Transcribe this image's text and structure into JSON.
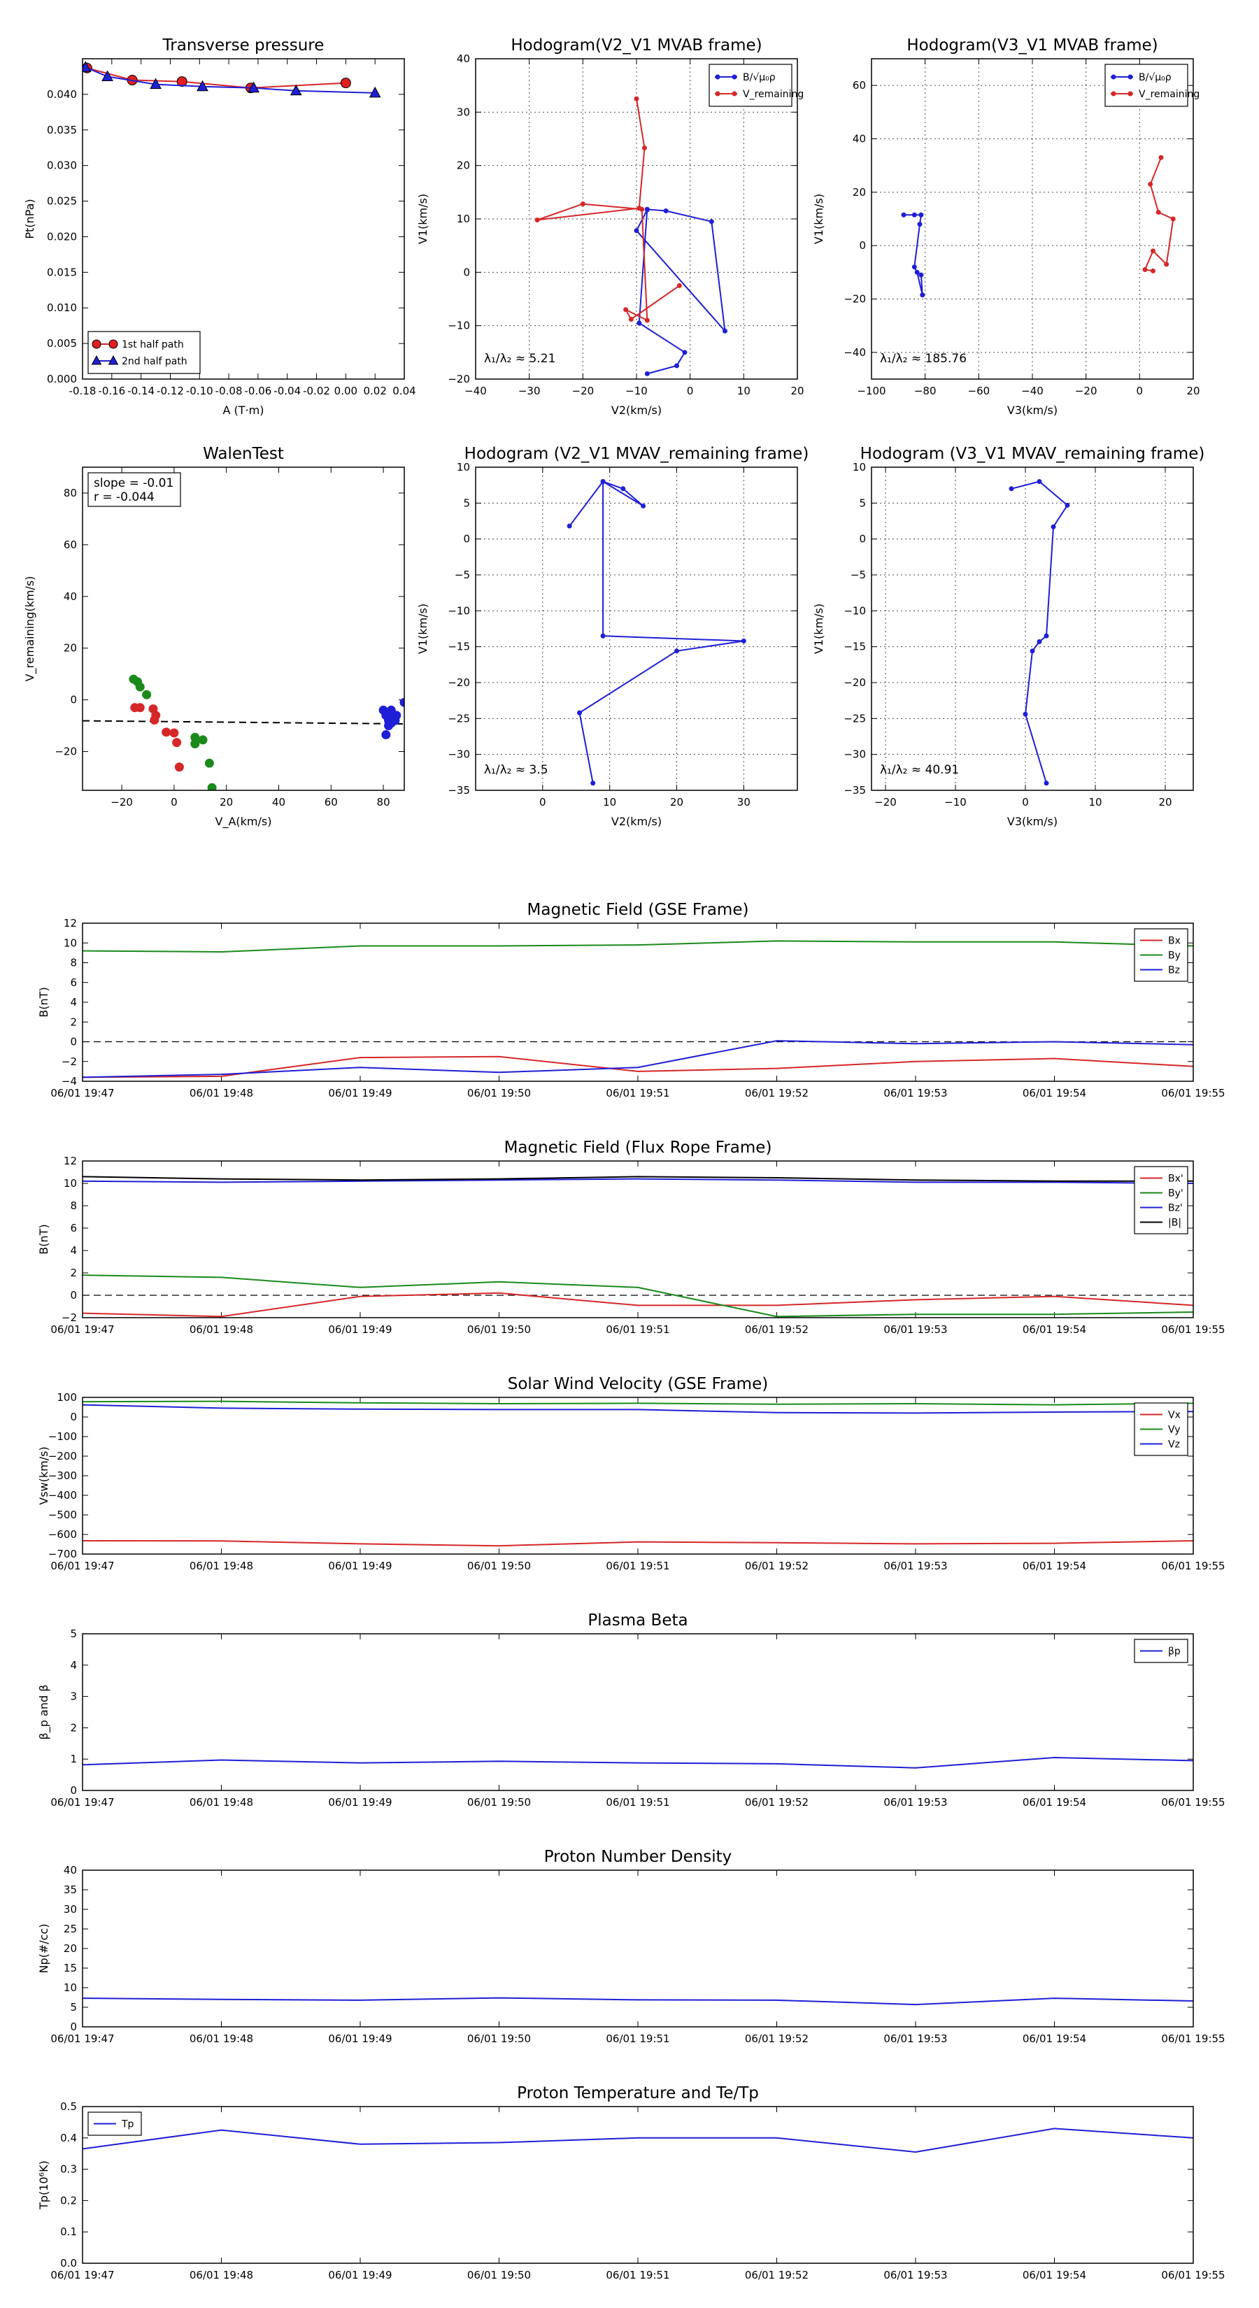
{
  "colors": {
    "red": "#d62728",
    "green": "#1a8a1a",
    "blue": "#1f1fd6",
    "black": "#000000"
  },
  "time_ticks": [
    "06/01 19:47",
    "06/01 19:48",
    "06/01 19:49",
    "06/01 19:50",
    "06/01 19:51",
    "06/01 19:52",
    "06/01 19:53",
    "06/01 19:54",
    "06/01 19:55"
  ],
  "chart_data": [
    {
      "id": "transverse_pressure",
      "type": "line",
      "title": "Transverse pressure",
      "xlabel": "A (T·m)",
      "ylabel": "Pt(nPa)",
      "xlim": [
        -0.18,
        0.04
      ],
      "ylim": [
        0.0,
        0.045
      ],
      "legend": "bottom-left",
      "xticks": [
        -0.18,
        -0.16,
        -0.14,
        -0.12,
        -0.1,
        -0.08,
        -0.06,
        -0.04,
        -0.02,
        0.0,
        0.02,
        0.04
      ],
      "xtick_labels": [
        "-0.18",
        "-0.16",
        "-0.14",
        "-0.12",
        "-0.10",
        "-0.08",
        "-0.06",
        "-0.04",
        "-0.02",
        "0.00",
        "0.02",
        "0.04"
      ],
      "yticks": [
        0.0,
        0.005,
        0.01,
        0.015,
        0.02,
        0.025,
        0.03,
        0.035,
        0.04
      ],
      "ytick_labels": [
        "0.000",
        "0.005",
        "0.010",
        "0.015",
        "0.020",
        "0.025",
        "0.030",
        "0.035",
        "0.040"
      ],
      "series": [
        {
          "name": "1st half path",
          "color": "red",
          "marker": "circle",
          "x": [
            -0.177,
            -0.146,
            -0.112,
            -0.065,
            0.0
          ],
          "y": [
            0.0437,
            0.042,
            0.0418,
            0.0409,
            0.0416
          ]
        },
        {
          "name": "2nd half path",
          "color": "blue",
          "marker": "triangle",
          "x": [
            0.02,
            -0.034,
            -0.063,
            -0.098,
            -0.13,
            -0.163,
            -0.178
          ],
          "y": [
            0.0402,
            0.0405,
            0.0409,
            0.0411,
            0.0414,
            0.0425,
            0.0438
          ]
        }
      ],
      "legend_labels": [
        "1st half path",
        "2nd half path"
      ]
    },
    {
      "id": "hodogram_v2_v1_mvab",
      "type": "line",
      "title": "Hodogram(V2_V1 MVAB frame)",
      "xlabel": "V2(km/s)",
      "ylabel": "V1(km/s)",
      "xlim": [
        -40,
        20
      ],
      "ylim": [
        -20,
        40
      ],
      "legend": "top-right",
      "grid": true,
      "xticks": [
        -40,
        -30,
        -20,
        -10,
        0,
        10,
        20
      ],
      "xtick_labels": [
        "−40",
        "−30",
        "−20",
        "−10",
        "0",
        "10",
        "20"
      ],
      "yticks": [
        -20,
        -10,
        0,
        10,
        20,
        30,
        40
      ],
      "ytick_labels": [
        "−20",
        "−10",
        "0",
        "10",
        "20",
        "30",
        "40"
      ],
      "annotation": "λ₁/λ₂ ≈ 5.21",
      "series": [
        {
          "name": "B/√(μ₀ρ)",
          "color": "blue",
          "x": [
            -8,
            -2.5,
            -1,
            -9.5,
            -8,
            -4.5,
            4,
            6.5,
            -10,
            -8
          ],
          "y": [
            -19,
            -17.5,
            -15,
            -9.5,
            11.8,
            11.5,
            9.5,
            -11,
            7.8,
            11.7
          ]
        },
        {
          "name": "V_remaining",
          "color": "red",
          "x": [
            -10,
            -8.5,
            -9.5,
            -28.5,
            -20,
            -9,
            -8,
            -12,
            -11,
            -2
          ],
          "y": [
            32.5,
            23.3,
            12,
            9.8,
            12.8,
            11.8,
            -9,
            -7,
            -8.8,
            -2.5
          ]
        }
      ],
      "legend_labels": [
        "B/√μ₀ρ",
        "V_remaining"
      ]
    },
    {
      "id": "hodogram_v3_v1_mvab",
      "type": "line",
      "title": "Hodogram(V3_V1 MVAB frame)",
      "xlabel": "V3(km/s)",
      "ylabel": "V1(km/s)",
      "xlim": [
        -100,
        20
      ],
      "ylim": [
        -50,
        70
      ],
      "legend": "top-right",
      "grid": true,
      "xticks": [
        -100,
        -80,
        -60,
        -40,
        -20,
        0,
        20
      ],
      "xtick_labels": [
        "−100",
        "−80",
        "−60",
        "−40",
        "−20",
        "0",
        "20"
      ],
      "yticks": [
        -40,
        -20,
        0,
        20,
        40,
        60
      ],
      "ytick_labels": [
        "−40",
        "−20",
        "0",
        "20",
        "40",
        "60"
      ],
      "annotation": "λ₁/λ₂ ≈ 185.76",
      "series": [
        {
          "name": "B/√(μ₀ρ)",
          "color": "blue",
          "x": [
            -88,
            -84,
            -81.5,
            -82,
            -84,
            -83,
            -81,
            -81.5
          ],
          "y": [
            11.5,
            11.5,
            11.5,
            8,
            -8,
            -10,
            -18.5,
            -11
          ]
        },
        {
          "name": "V_remaining",
          "color": "red",
          "x": [
            8,
            4,
            7,
            12.5,
            10,
            5,
            2,
            5
          ],
          "y": [
            33,
            23,
            12.5,
            10,
            -7,
            -2,
            -9,
            -9.5
          ]
        }
      ],
      "legend_labels": [
        "B/√μ₀ρ",
        "V_remaining"
      ]
    },
    {
      "id": "walen_test",
      "type": "scatter",
      "title": "WalenTest",
      "xlabel": "V_A(km/s)",
      "ylabel": "V_remaining(km/s)",
      "xlim": [
        -35,
        88
      ],
      "ylim": [
        -35,
        90
      ],
      "xticks": [
        -20,
        0,
        20,
        40,
        60,
        80
      ],
      "xtick_labels": [
        "−20",
        "0",
        "20",
        "40",
        "60",
        "80"
      ],
      "yticks": [
        -20,
        0,
        20,
        40,
        60,
        80
      ],
      "ytick_labels": [
        "−20",
        "0",
        "20",
        "40",
        "60",
        "80"
      ],
      "annotation_lines": [
        "slope = -0.01",
        "r = -0.044"
      ],
      "fit_line": {
        "x": [
          -35,
          88
        ],
        "y": [
          -8.1,
          -9.3
        ]
      },
      "series": [
        {
          "name": "green",
          "color": "green",
          "x": [
            -15.5,
            -14,
            -13,
            -10.5,
            8,
            8,
            11,
            13.5,
            14.5
          ],
          "y": [
            8,
            7,
            5,
            2,
            -14.5,
            -17,
            -15.5,
            -24.5,
            -34
          ]
        },
        {
          "name": "red",
          "color": "red",
          "x": [
            -15,
            -13,
            -8,
            -7,
            -7.5,
            -3,
            0,
            1,
            2
          ],
          "y": [
            -3,
            -3,
            -3.5,
            -6,
            -7.8,
            -12.5,
            -12.8,
            -16.5,
            -26
          ]
        },
        {
          "name": "blue",
          "color": "blue",
          "x": [
            80,
            81,
            82,
            83,
            84,
            84.5,
            82,
            81,
            83,
            85,
            88
          ],
          "y": [
            -4,
            -6,
            -8,
            -4,
            -6,
            -8,
            -10,
            -13.5,
            -9,
            -6,
            -1
          ]
        }
      ]
    },
    {
      "id": "hodogram_v2_v1_mvav",
      "type": "line",
      "title": "Hodogram (V2_V1 MVAV_remaining frame)",
      "xlabel": "V2(km/s)",
      "ylabel": "V1(km/s)",
      "xlim": [
        -10,
        38
      ],
      "ylim": [
        -35,
        10
      ],
      "grid": true,
      "xticks": [
        0,
        10,
        20,
        30
      ],
      "xtick_labels": [
        "0",
        "10",
        "20",
        "30"
      ],
      "yticks": [
        -35,
        -30,
        -25,
        -20,
        -15,
        -10,
        -5,
        0,
        5,
        10
      ],
      "ytick_labels": [
        "−35",
        "−30",
        "−25",
        "−20",
        "−15",
        "−10",
        "−5",
        "0",
        "5",
        "10"
      ],
      "annotation": "λ₁/λ₂ ≈ 3.5",
      "series": [
        {
          "name": "V",
          "color": "blue",
          "x": [
            4,
            9,
            12,
            15,
            9,
            9,
            30,
            20,
            5.5,
            7.5
          ],
          "y": [
            1.8,
            8,
            7,
            4.6,
            8,
            -13.5,
            -14.2,
            -15.6,
            -24.2,
            -34
          ]
        }
      ]
    },
    {
      "id": "hodogram_v3_v1_mvav",
      "type": "line",
      "title": "Hodogram (V3_V1 MVAV_remaining frame)",
      "xlabel": "V3(km/s)",
      "ylabel": "V1(km/s)",
      "xlim": [
        -22,
        24
      ],
      "ylim": [
        -35,
        10
      ],
      "grid": true,
      "xticks": [
        -20,
        -10,
        0,
        10,
        20
      ],
      "xtick_labels": [
        "−20",
        "−10",
        "0",
        "10",
        "20"
      ],
      "yticks": [
        -35,
        -30,
        -25,
        -20,
        -15,
        -10,
        -5,
        0,
        5,
        10
      ],
      "ytick_labels": [
        "−35",
        "−30",
        "−25",
        "−20",
        "−15",
        "−10",
        "−5",
        "0",
        "5",
        "10"
      ],
      "annotation": "λ₁/λ₂ ≈ 40.91",
      "series": [
        {
          "name": "V",
          "color": "blue",
          "x": [
            -2,
            2,
            6,
            4,
            3,
            2,
            1,
            0,
            3
          ],
          "y": [
            7,
            8,
            4.7,
            1.7,
            -13.5,
            -14.3,
            -15.6,
            -24.4,
            -34
          ]
        }
      ]
    },
    {
      "id": "mag_gse",
      "type": "line",
      "title": "Magnetic Field (GSE Frame)",
      "ylabel": "B(nT)",
      "ylim": [
        -4,
        12
      ],
      "yticks": [
        -4,
        -2,
        0,
        2,
        4,
        6,
        8,
        10,
        12
      ],
      "ytick_labels": [
        "−4",
        "−2",
        "0",
        "2",
        "4",
        "6",
        "8",
        "10",
        "12"
      ],
      "zero_line": true,
      "legend": "top-right",
      "series": [
        {
          "name": "Bx",
          "color": "red",
          "y": [
            -3.6,
            -3.5,
            -1.6,
            -1.5,
            -3,
            -2.7,
            -2,
            -1.7,
            -2.5
          ]
        },
        {
          "name": "By",
          "color": "green",
          "y": [
            9.2,
            9.1,
            9.7,
            9.7,
            9.8,
            10.2,
            10.1,
            10.1,
            9.7
          ]
        },
        {
          "name": "Bz",
          "color": "blue",
          "y": [
            -3.6,
            -3.3,
            -2.6,
            -3.1,
            -2.6,
            0.1,
            -0.2,
            0,
            -0.3
          ]
        }
      ],
      "legend_labels": [
        "Bx",
        "By",
        "Bz"
      ]
    },
    {
      "id": "mag_fr",
      "type": "line",
      "title": "Magnetic Field (Flux Rope Frame)",
      "ylabel": "B(nT)",
      "ylim": [
        -2,
        12
      ],
      "yticks": [
        -2,
        0,
        2,
        4,
        6,
        8,
        10,
        12
      ],
      "ytick_labels": [
        "−2",
        "0",
        "2",
        "4",
        "6",
        "8",
        "10",
        "12"
      ],
      "zero_line": true,
      "legend": "top-right",
      "series": [
        {
          "name": "Bx'",
          "color": "red",
          "y": [
            -1.6,
            -1.9,
            -0.1,
            0.2,
            -0.9,
            -0.9,
            -0.4,
            -0.1,
            -0.9
          ]
        },
        {
          "name": "By'",
          "color": "green",
          "y": [
            1.8,
            1.6,
            0.7,
            1.2,
            0.7,
            -1.9,
            -1.7,
            -1.7,
            -1.5
          ]
        },
        {
          "name": "Bz'",
          "color": "blue",
          "y": [
            10.2,
            10.1,
            10.2,
            10.3,
            10.4,
            10.3,
            10.1,
            10.1,
            10.0
          ]
        },
        {
          "name": "|B|",
          "color": "black",
          "y": [
            10.6,
            10.4,
            10.3,
            10.4,
            10.6,
            10.5,
            10.3,
            10.2,
            10.2
          ]
        }
      ],
      "legend_labels": [
        "Bx'",
        "By'",
        "Bz'",
        "|B|"
      ]
    },
    {
      "id": "velocity",
      "type": "line",
      "title": "Solar Wind Velocity (GSE Frame)",
      "ylabel": "Vsw(km/s)",
      "ylim": [
        -700,
        100
      ],
      "yticks": [
        -700,
        -600,
        -500,
        -400,
        -300,
        -200,
        -100,
        0,
        100
      ],
      "ytick_labels": [
        "−700",
        "−600",
        "−500",
        "−400",
        "−300",
        "−200",
        "−100",
        "0",
        "100"
      ],
      "legend": "top-right",
      "series": [
        {
          "name": "Vx",
          "color": "red",
          "y": [
            -632,
            -633,
            -648,
            -658,
            -638,
            -642,
            -648,
            -645,
            -632
          ]
        },
        {
          "name": "Vy",
          "color": "green",
          "y": [
            78,
            80,
            72,
            68,
            70,
            65,
            68,
            62,
            70
          ]
        },
        {
          "name": "Vz",
          "color": "blue",
          "y": [
            62,
            45,
            40,
            38,
            38,
            22,
            20,
            25,
            28
          ]
        }
      ],
      "legend_labels": [
        "Vx",
        "Vy",
        "Vz"
      ]
    },
    {
      "id": "beta",
      "type": "line",
      "title": "Plasma Beta",
      "ylabel": "β_p and β",
      "ylim": [
        0,
        5
      ],
      "yticks": [
        0,
        1,
        2,
        3,
        4,
        5
      ],
      "ytick_labels": [
        "0",
        "1",
        "2",
        "3",
        "4",
        "5"
      ],
      "legend": "top-right",
      "series": [
        {
          "name": "β_p",
          "color": "blue",
          "y": [
            0.82,
            0.97,
            0.88,
            0.93,
            0.88,
            0.85,
            0.72,
            1.05,
            0.95
          ]
        }
      ],
      "legend_labels": [
        "βp"
      ]
    },
    {
      "id": "density",
      "type": "line",
      "title": "Proton Number Density",
      "ylabel": "Np(#/cc)",
      "ylim": [
        0,
        40
      ],
      "yticks": [
        0,
        5,
        10,
        15,
        20,
        25,
        30,
        35,
        40
      ],
      "ytick_labels": [
        "0",
        "5",
        "10",
        "15",
        "20",
        "25",
        "30",
        "35",
        "40"
      ],
      "series": [
        {
          "name": "Np",
          "color": "blue",
          "y": [
            7.3,
            7.0,
            6.8,
            7.4,
            6.9,
            6.8,
            5.7,
            7.3,
            6.6
          ]
        }
      ]
    },
    {
      "id": "temperature",
      "type": "line",
      "title": "Proton Temperature and Te/Tp",
      "ylabel": "Tp(10⁶K)",
      "ylim": [
        0,
        0.5
      ],
      "yticks": [
        0,
        0.1,
        0.2,
        0.3,
        0.4,
        0.5
      ],
      "ytick_labels": [
        "0.0",
        "0.1",
        "0.2",
        "0.3",
        "0.4",
        "0.5"
      ],
      "legend": "top-left",
      "series": [
        {
          "name": "Tp",
          "color": "blue",
          "y": [
            0.365,
            0.425,
            0.38,
            0.385,
            0.4,
            0.4,
            0.355,
            0.43,
            0.4
          ]
        }
      ],
      "legend_labels": [
        "Tp"
      ]
    }
  ]
}
